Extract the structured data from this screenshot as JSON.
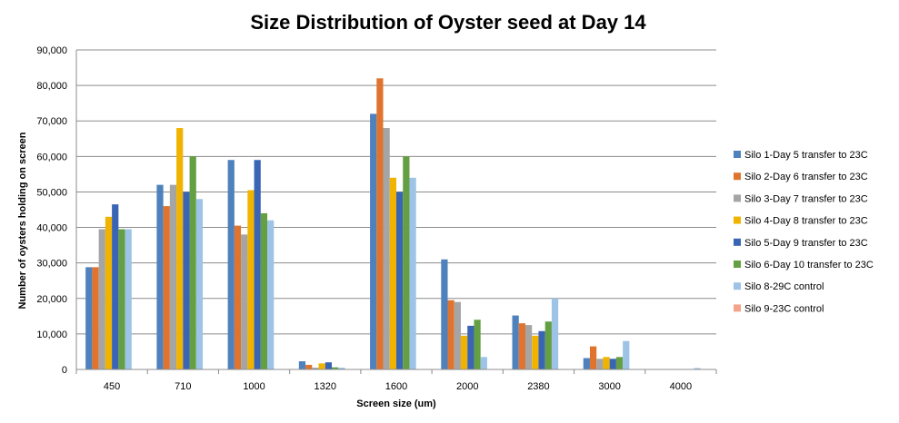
{
  "chart_data": {
    "type": "bar",
    "title": "Size Distribution of Oyster seed at Day 14",
    "xlabel": "Screen size (um)",
    "ylabel": "Number of oysters holding on screen",
    "categories": [
      "450",
      "710",
      "1000",
      "1320",
      "1600",
      "2000",
      "2380",
      "3000",
      "4000"
    ],
    "ylim": [
      0,
      90000
    ],
    "yticks": [
      "0",
      "10,000",
      "20,000",
      "30,000",
      "40,000",
      "50,000",
      "60,000",
      "70,000",
      "80,000",
      "90,000"
    ],
    "grid": true,
    "legend_position": "right",
    "series": [
      {
        "name": "Silo 1-Day 5 transfer to 23C",
        "color": "#4f81bd",
        "values": [
          28800,
          52000,
          59000,
          2300,
          72000,
          31000,
          15200,
          3200,
          0
        ]
      },
      {
        "name": "Silo 2-Day 6 transfer to 23C",
        "color": "#e0742f",
        "values": [
          28800,
          46000,
          40500,
          1300,
          82000,
          19500,
          13000,
          6500,
          0
        ]
      },
      {
        "name": "Silo 3-Day 7 transfer to 23C",
        "color": "#a5a5a5",
        "values": [
          39500,
          52000,
          38000,
          500,
          68000,
          19000,
          12500,
          3000,
          0
        ]
      },
      {
        "name": "Silo 4-Day 8 transfer to 23C",
        "color": "#f0b400",
        "values": [
          43000,
          68000,
          50500,
          1700,
          54000,
          9500,
          9500,
          3500,
          0
        ]
      },
      {
        "name": "Silo 5-Day 9 transfer to 23C",
        "color": "#3a64b4",
        "values": [
          46500,
          50000,
          59000,
          2000,
          50000,
          12300,
          10800,
          3000,
          0
        ]
      },
      {
        "name": "Silo 6-Day 10 transfer to 23C",
        "color": "#64a043",
        "values": [
          39500,
          60000,
          44000,
          600,
          60000,
          14000,
          13500,
          3500,
          0
        ]
      },
      {
        "name": "Silo 8-29C control",
        "color": "#9dc3e6",
        "values": [
          39500,
          48000,
          42000,
          500,
          54000,
          3500,
          20000,
          8000,
          400
        ]
      },
      {
        "name": "Silo 9-23C control",
        "color": "#f4a48a",
        "values": [
          0,
          0,
          0,
          0,
          0,
          0,
          0,
          0,
          0
        ]
      }
    ]
  }
}
